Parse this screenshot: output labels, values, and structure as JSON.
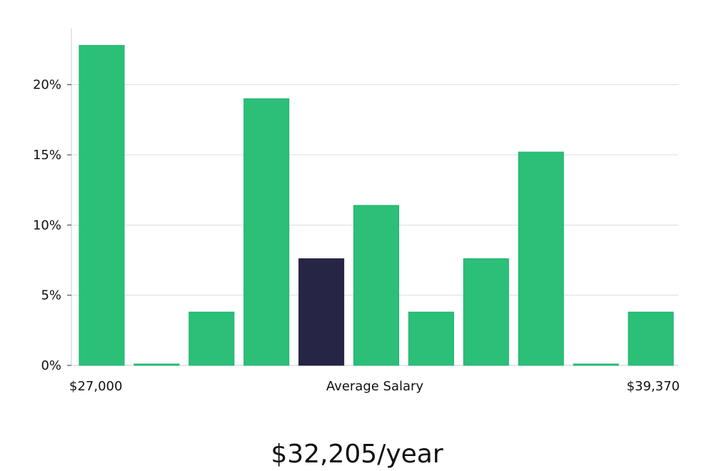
{
  "chart_data": {
    "type": "bar",
    "title": "",
    "xlabel": "Average Salary",
    "ylabel": "",
    "x_min_label": "$27,000",
    "x_max_label": "$39,370",
    "summary": "$32,205/year",
    "ylim": [
      0,
      24
    ],
    "yticks": [
      0,
      5,
      10,
      15,
      20
    ],
    "ytick_labels": [
      "0%",
      "5%",
      "10%",
      "15%",
      "20%"
    ],
    "values": [
      22.8,
      0.1,
      3.8,
      19.0,
      7.6,
      11.4,
      3.8,
      7.6,
      15.2,
      0.1,
      3.8
    ],
    "highlight_index": 4,
    "grid": true
  },
  "colors": {
    "bar": "#2bbf78",
    "bar_stroke": "#21b36c",
    "highlight": "#272545",
    "grid": "#dddddd",
    "axis": "#cccccc"
  }
}
